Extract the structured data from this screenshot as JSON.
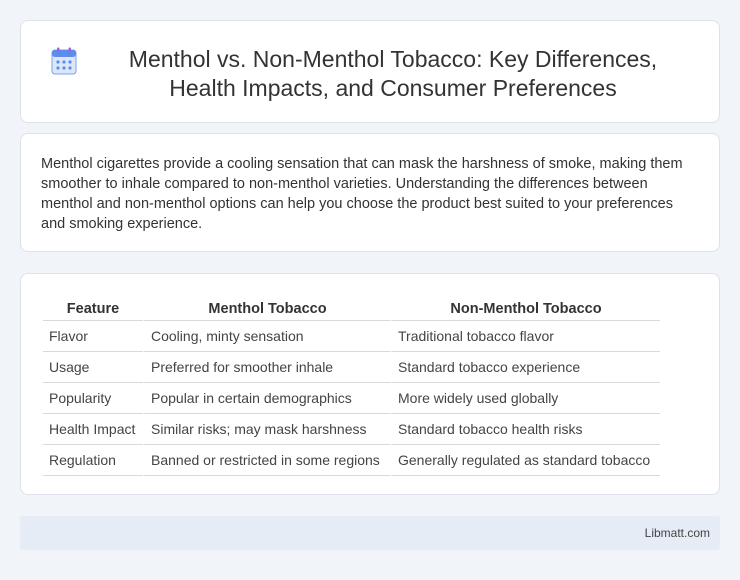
{
  "header": {
    "title": "Menthol vs. Non-Menthol Tobacco: Key Differences, Health Impacts, and Consumer Preferences",
    "icon": "calendar-icon",
    "accent_color": "#5b8def"
  },
  "intro": {
    "text": "Menthol cigarettes provide a cooling sensation that can mask the harshness of smoke, making them smoother to inhale compared to non-menthol varieties. Understanding the differences between menthol and non-menthol options can help you choose the product best suited to your preferences and smoking experience."
  },
  "table": {
    "headers": [
      "Feature",
      "Menthol Tobacco",
      "Non-Menthol Tobacco"
    ],
    "rows": [
      [
        "Flavor",
        "Cooling, minty sensation",
        "Traditional tobacco flavor"
      ],
      [
        "Usage",
        "Preferred for smoother inhale",
        "Standard tobacco experience"
      ],
      [
        "Popularity",
        "Popular in certain demographics",
        "More widely used globally"
      ],
      [
        "Health Impact",
        "Similar risks; may mask harshness",
        "Standard tobacco health risks"
      ],
      [
        "Regulation",
        "Banned or restricted in some regions",
        "Generally regulated as standard tobacco"
      ]
    ]
  },
  "footer": {
    "brand": "Libmatt.com"
  }
}
